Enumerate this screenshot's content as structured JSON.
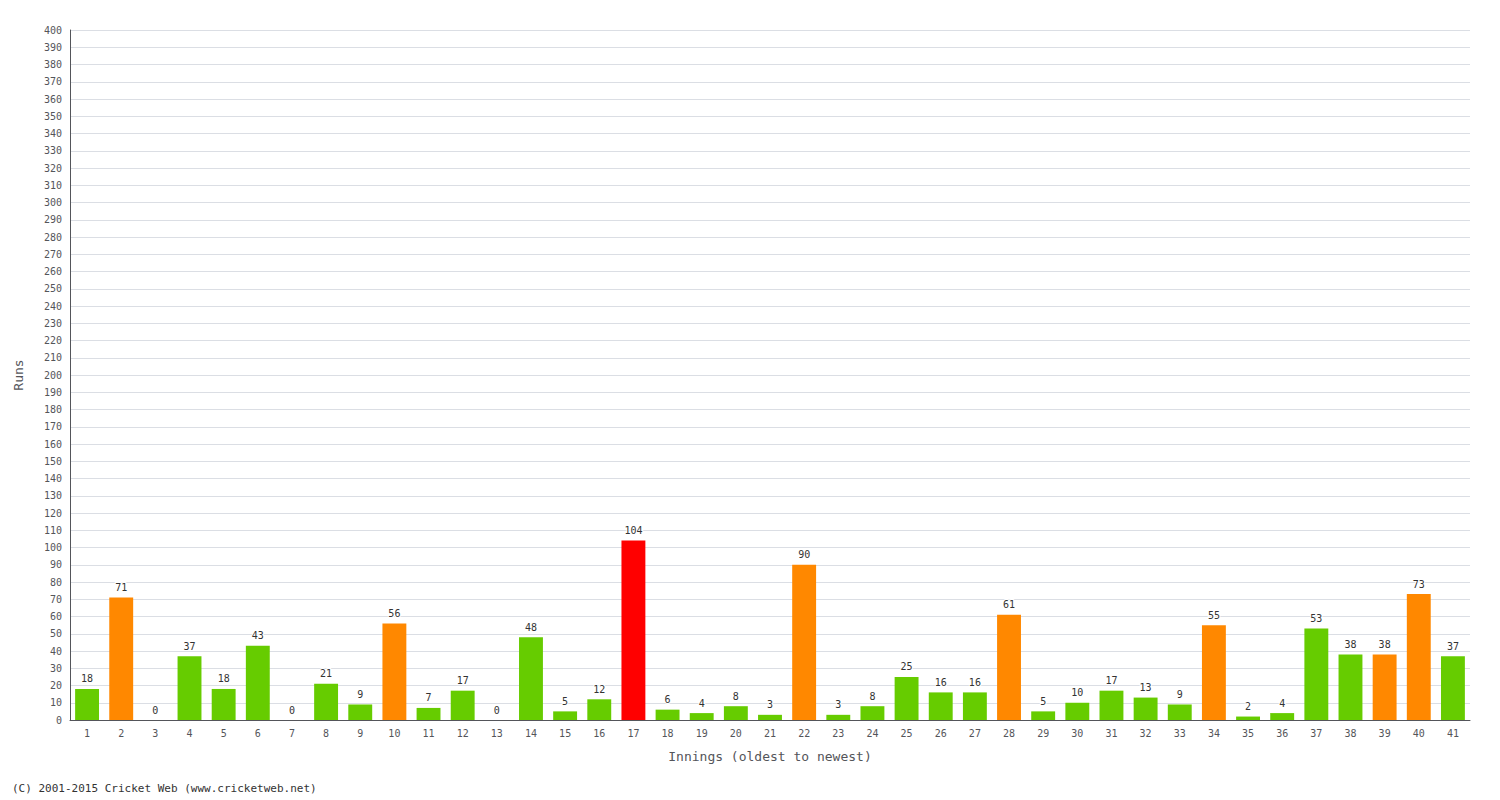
{
  "chart_data": {
    "type": "bar",
    "xlabel": "Innings (oldest to newest)",
    "ylabel": "Runs",
    "categories": [
      "1",
      "2",
      "3",
      "4",
      "5",
      "6",
      "7",
      "8",
      "9",
      "10",
      "11",
      "12",
      "13",
      "14",
      "15",
      "16",
      "17",
      "18",
      "19",
      "20",
      "21",
      "22",
      "23",
      "24",
      "25",
      "26",
      "27",
      "28",
      "29",
      "30",
      "31",
      "32",
      "33",
      "34",
      "35",
      "36",
      "37",
      "38",
      "39",
      "40",
      "41"
    ],
    "values": [
      18,
      71,
      0,
      37,
      18,
      43,
      0,
      21,
      9,
      56,
      7,
      17,
      0,
      48,
      5,
      12,
      104,
      6,
      4,
      8,
      3,
      90,
      3,
      8,
      25,
      16,
      16,
      61,
      5,
      10,
      17,
      13,
      9,
      55,
      2,
      4,
      53,
      38,
      38,
      73,
      37
    ],
    "colors": [
      "#66cc00",
      "#ff8800",
      "#66cc00",
      "#66cc00",
      "#66cc00",
      "#66cc00",
      "#66cc00",
      "#66cc00",
      "#66cc00",
      "#ff8800",
      "#66cc00",
      "#66cc00",
      "#66cc00",
      "#66cc00",
      "#66cc00",
      "#66cc00",
      "#ff0000",
      "#66cc00",
      "#66cc00",
      "#66cc00",
      "#66cc00",
      "#ff8800",
      "#66cc00",
      "#66cc00",
      "#66cc00",
      "#66cc00",
      "#66cc00",
      "#ff8800",
      "#66cc00",
      "#66cc00",
      "#66cc00",
      "#66cc00",
      "#66cc00",
      "#ff8800",
      "#66cc00",
      "#66cc00",
      "#66cc00",
      "#66cc00",
      "#ff8800",
      "#ff8800",
      "#66cc00"
    ],
    "ylim": [
      0,
      400
    ],
    "yticks": [
      0,
      10,
      20,
      30,
      40,
      50,
      60,
      70,
      80,
      90,
      100,
      110,
      120,
      130,
      140,
      150,
      160,
      170,
      180,
      190,
      200,
      210,
      220,
      230,
      240,
      250,
      260,
      270,
      280,
      290,
      300,
      310,
      320,
      330,
      340,
      350,
      360,
      370,
      380,
      390,
      400
    ],
    "grid": true,
    "data_labels": true,
    "annotations": [
      "(C) 2001-2015 Cricket Web (www.cricketweb.net)"
    ]
  }
}
